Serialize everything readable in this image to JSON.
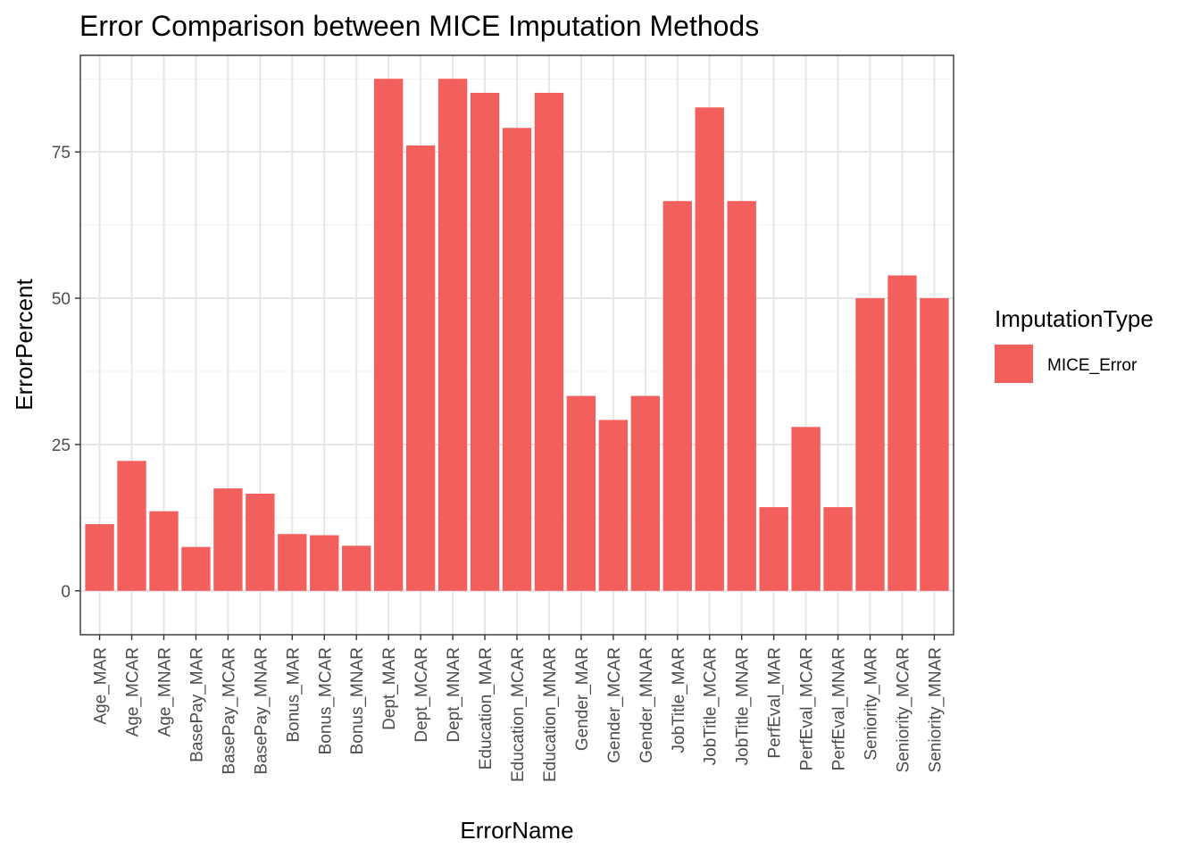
{
  "chart_data": {
    "type": "bar",
    "title": "Error Comparison between MICE Imputation Methods",
    "xlabel": "ErrorName",
    "ylabel": "ErrorPercent",
    "ylim": [
      -7.5,
      91.5
    ],
    "yticks": [
      0,
      25,
      50,
      75
    ],
    "grid": true,
    "legend_position": "right",
    "categories": [
      "Age_MAR",
      "Age_MCAR",
      "Age_MNAR",
      "BasePay_MAR",
      "BasePay_MCAR",
      "BasePay_MNAR",
      "Bonus_MAR",
      "Bonus_MCAR",
      "Bonus_MNAR",
      "Dept_MAR",
      "Dept_MCAR",
      "Dept_MNAR",
      "Education_MAR",
      "Education_MCAR",
      "Education_MNAR",
      "Gender_MAR",
      "Gender_MCAR",
      "Gender_MNAR",
      "JobTitle_MAR",
      "JobTitle_MCAR",
      "JobTitle_MNAR",
      "PerfEval_MAR",
      "PerfEval_MCAR",
      "PerfEval_MNAR",
      "Seniority_MAR",
      "Seniority_MCAR",
      "Seniority_MNAR"
    ],
    "series": [
      {
        "name": "MICE_Error",
        "color": "#F25F5C",
        "values": [
          11.4,
          22.2,
          13.6,
          7.5,
          17.5,
          16.6,
          9.7,
          9.5,
          7.7,
          87.5,
          76.1,
          87.5,
          85.1,
          79.1,
          85.1,
          33.3,
          29.2,
          33.3,
          66.6,
          82.6,
          66.6,
          14.3,
          28.0,
          14.3,
          50.0,
          53.9,
          50.0
        ]
      }
    ],
    "legend": {
      "title": "ImputationType",
      "items": [
        {
          "label": "MICE_Error",
          "color": "#F25F5C"
        }
      ]
    }
  }
}
